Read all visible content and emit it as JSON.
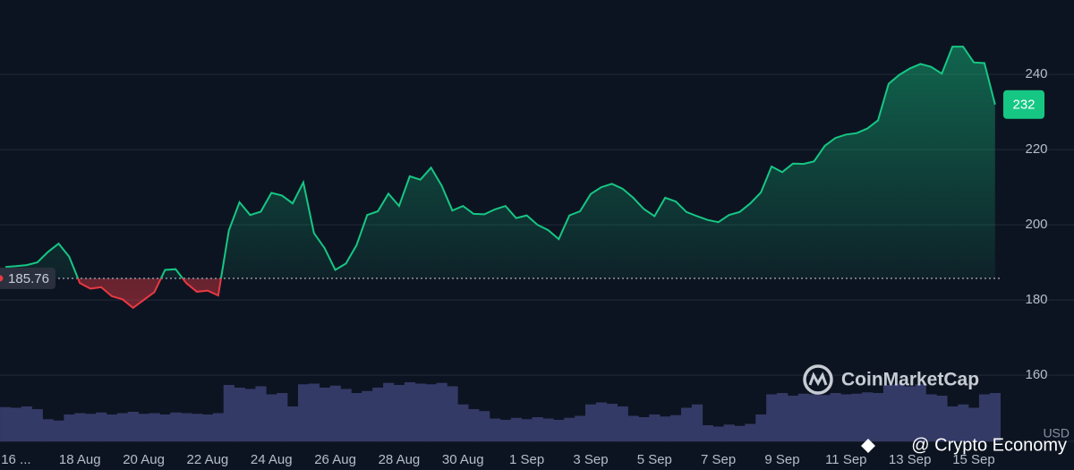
{
  "chart_data": {
    "type": "line",
    "categories": [
      null,
      "16 ...",
      null,
      null,
      null,
      null,
      null,
      "18 Aug",
      null,
      null,
      null,
      null,
      null,
      "20 Aug",
      null,
      null,
      null,
      null,
      null,
      "22 Aug",
      null,
      null,
      null,
      null,
      null,
      "24 Aug",
      null,
      null,
      null,
      null,
      null,
      "26 Aug",
      null,
      null,
      null,
      null,
      null,
      "28 Aug",
      null,
      null,
      null,
      null,
      null,
      "30 Aug",
      null,
      null,
      null,
      null,
      null,
      "1 Sep",
      null,
      null,
      null,
      null,
      null,
      "3 Sep",
      null,
      null,
      null,
      null,
      null,
      "5 Sep",
      null,
      null,
      null,
      null,
      null,
      "7 Sep",
      null,
      null,
      null,
      null,
      null,
      "9 Sep",
      null,
      null,
      null,
      null,
      null,
      "11 Sep",
      null,
      null,
      null,
      null,
      null,
      "13 Sep",
      null,
      null,
      null,
      null,
      null,
      "15 Sep",
      null,
      null
    ],
    "values": [
      188.8,
      189.0,
      189.3,
      190.0,
      192.8,
      195.0,
      191.5,
      184.5,
      183.0,
      183.4,
      181.0,
      180.2,
      177.9,
      180.0,
      182.1,
      188.0,
      188.2,
      184.5,
      182.2,
      182.5,
      181.2,
      198.5,
      206.0,
      202.6,
      203.5,
      208.5,
      207.8,
      205.7,
      211.3,
      197.8,
      193.8,
      188.0,
      189.7,
      194.6,
      202.6,
      203.6,
      208.3,
      205.0,
      212.9,
      212.0,
      215.2,
      210.4,
      203.8,
      205.0,
      202.9,
      202.8,
      204.1,
      205.0,
      201.8,
      202.5,
      200.0,
      198.6,
      196.2,
      202.5,
      203.6,
      208.2,
      210.0,
      210.9,
      209.6,
      207.2,
      204.2,
      202.3,
      207.2,
      206.2,
      203.4,
      202.3,
      201.3,
      200.7,
      202.6,
      203.4,
      205.7,
      208.6,
      215.5,
      214.0,
      216.3,
      216.2,
      216.9,
      221.0,
      223.1,
      224.0,
      224.4,
      225.6,
      227.8,
      237.5,
      239.9,
      241.6,
      242.8,
      242.0,
      240.2,
      247.4,
      247.4,
      243.2,
      243.0,
      232
    ],
    "volume": [
      51,
      50,
      52,
      48,
      33,
      31,
      40,
      42,
      41,
      43,
      40,
      42,
      44,
      41,
      42,
      40,
      43,
      42,
      41,
      40,
      42,
      84,
      80,
      78,
      82,
      70,
      72,
      52,
      85,
      86,
      80,
      83,
      78,
      72,
      75,
      80,
      87,
      84,
      88,
      86,
      85,
      87,
      82,
      55,
      48,
      45,
      34,
      32,
      35,
      33,
      36,
      34,
      32,
      35,
      38,
      55,
      58,
      56,
      52,
      38,
      36,
      40,
      37,
      39,
      50,
      55,
      24,
      22,
      25,
      23,
      26,
      40,
      70,
      72,
      68,
      71,
      70,
      69,
      72,
      70,
      71,
      73,
      72,
      84,
      86,
      82,
      85,
      70,
      68,
      52,
      55,
      50,
      70,
      72
    ],
    "volume_lim": [
      0,
      100
    ],
    "volume_color": "#343a66",
    "baseline": 185.76,
    "last_price": 232,
    "up_color": "#16c784",
    "down_color": "#ea3943",
    "ylim": [
      142.4,
      259.8
    ],
    "yticks": [
      160,
      180,
      200,
      220,
      240
    ],
    "grid": true,
    "currency": "USD",
    "watermark": "CoinMarketCap",
    "credit": "@ Crypto Economy"
  }
}
